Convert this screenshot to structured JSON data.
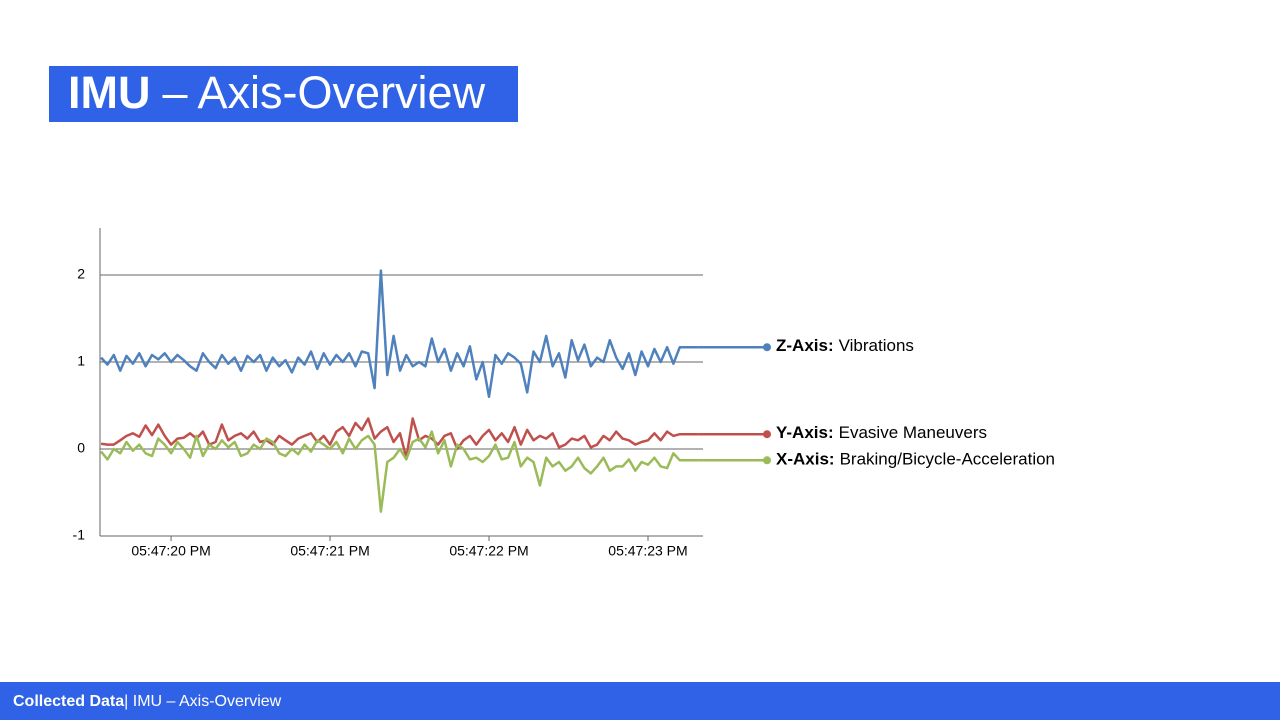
{
  "slide_title": {
    "bold": "IMU",
    "rest": "– Axis-Overview"
  },
  "footer": {
    "bold": "Collected Data",
    "rest": "| IMU – Axis-Overview"
  },
  "chart_data": {
    "type": "line",
    "x": [
      19.56,
      19.6,
      19.64,
      19.68,
      19.72,
      19.76,
      19.8,
      19.84,
      19.88,
      19.92,
      19.96,
      20,
      20.04,
      20.08,
      20.12,
      20.16,
      20.2,
      20.24,
      20.28,
      20.32,
      20.36,
      20.4,
      20.44,
      20.48,
      20.52,
      20.56,
      20.6,
      20.64,
      20.68,
      20.72,
      20.76,
      20.8,
      20.84,
      20.88,
      20.92,
      20.96,
      21,
      21.04,
      21.08,
      21.12,
      21.16,
      21.2,
      21.24,
      21.28,
      21.32,
      21.36,
      21.4,
      21.44,
      21.48,
      21.52,
      21.56,
      21.6,
      21.64,
      21.68,
      21.72,
      21.76,
      21.8,
      21.84,
      21.88,
      21.92,
      21.96,
      22,
      22.04,
      22.08,
      22.12,
      22.16,
      22.2,
      22.24,
      22.28,
      22.32,
      22.36,
      22.4,
      22.44,
      22.48,
      22.52,
      22.56,
      22.6,
      22.64,
      22.68,
      22.72,
      22.76,
      22.8,
      22.84,
      22.88,
      22.92,
      22.96,
      23,
      23.04,
      23.08,
      23.12,
      23.16,
      23.2,
      23.24,
      23.28,
      23.32
    ],
    "series": [
      {
        "name": "Z-Axis:",
        "detail": "Vibrations",
        "color": "#4f81bd",
        "values": [
          1.05,
          0.97,
          1.08,
          0.9,
          1.07,
          0.98,
          1.1,
          0.95,
          1.08,
          1.03,
          1.1,
          1.0,
          1.08,
          1.02,
          0.95,
          0.9,
          1.1,
          1.0,
          0.93,
          1.08,
          0.98,
          1.05,
          0.9,
          1.07,
          1.0,
          1.08,
          0.9,
          1.05,
          0.95,
          1.02,
          0.88,
          1.05,
          0.97,
          1.12,
          0.92,
          1.1,
          0.97,
          1.08,
          1.0,
          1.1,
          0.95,
          1.12,
          1.1,
          0.7,
          2.05,
          0.85,
          1.3,
          0.9,
          1.08,
          0.95,
          1.0,
          0.95,
          1.27,
          1.0,
          1.15,
          0.9,
          1.1,
          0.95,
          1.18,
          0.8,
          1.0,
          0.6,
          1.08,
          0.98,
          1.1,
          1.05,
          0.98,
          0.65,
          1.12,
          1.0,
          1.3,
          0.95,
          1.1,
          0.82,
          1.25,
          1.02,
          1.2,
          0.95,
          1.05,
          1.0,
          1.25,
          1.05,
          0.92,
          1.1,
          0.85,
          1.12,
          0.95,
          1.15,
          1.0,
          1.17,
          0.98,
          1.17,
          1.17,
          1.17,
          1.17
        ]
      },
      {
        "name": "Y-Axis:",
        "detail": "Evasive Maneuvers",
        "color": "#c0504d",
        "values": [
          0.06,
          0.05,
          0.05,
          0.1,
          0.15,
          0.18,
          0.14,
          0.27,
          0.16,
          0.28,
          0.15,
          0.05,
          0.12,
          0.13,
          0.18,
          0.12,
          0.2,
          0.05,
          0.08,
          0.28,
          0.1,
          0.15,
          0.18,
          0.12,
          0.2,
          0.08,
          0.1,
          0.05,
          0.15,
          0.1,
          0.05,
          0.12,
          0.15,
          0.18,
          0.08,
          0.15,
          0.05,
          0.2,
          0.25,
          0.15,
          0.3,
          0.22,
          0.35,
          0.12,
          0.2,
          0.25,
          0.08,
          0.18,
          -0.1,
          0.35,
          0.1,
          0.15,
          0.12,
          0.05,
          0.15,
          0.18,
          0.0,
          0.1,
          0.15,
          0.05,
          0.15,
          0.22,
          0.1,
          0.18,
          0.08,
          0.25,
          0.05,
          0.22,
          0.1,
          0.15,
          0.12,
          0.18,
          0.02,
          0.05,
          0.12,
          0.1,
          0.15,
          0.02,
          0.05,
          0.15,
          0.1,
          0.2,
          0.12,
          0.1,
          0.05,
          0.08,
          0.1,
          0.18,
          0.1,
          0.2,
          0.15,
          0.17,
          0.17,
          0.17,
          0.17
        ]
      },
      {
        "name": "X-Axis:",
        "detail": "Braking/Bicycle-Acceleration",
        "color": "#9bbb59",
        "values": [
          -0.03,
          -0.12,
          0.0,
          -0.05,
          0.08,
          -0.02,
          0.05,
          -0.05,
          -0.08,
          0.12,
          0.05,
          -0.05,
          0.08,
          0.0,
          -0.1,
          0.15,
          -0.08,
          0.05,
          0.0,
          0.1,
          0.02,
          0.08,
          -0.08,
          -0.05,
          0.05,
          0.0,
          0.12,
          0.08,
          -0.05,
          -0.08,
          0.0,
          -0.06,
          0.05,
          -0.03,
          0.1,
          0.05,
          0.0,
          0.08,
          -0.05,
          0.12,
          0.0,
          0.1,
          0.15,
          0.05,
          -0.72,
          -0.15,
          -0.1,
          0.0,
          -0.12,
          0.08,
          0.12,
          0.02,
          0.2,
          -0.05,
          0.1,
          -0.2,
          0.05,
          0.0,
          -0.12,
          -0.1,
          -0.15,
          -0.08,
          0.05,
          -0.12,
          -0.1,
          0.08,
          -0.2,
          -0.1,
          -0.15,
          -0.42,
          -0.1,
          -0.2,
          -0.15,
          -0.25,
          -0.2,
          -0.1,
          -0.22,
          -0.28,
          -0.2,
          -0.1,
          -0.25,
          -0.2,
          -0.2,
          -0.12,
          -0.25,
          -0.15,
          -0.18,
          -0.1,
          -0.2,
          -0.22,
          -0.05,
          -0.13,
          -0.13,
          -0.13,
          -0.13
        ]
      }
    ],
    "xlim": [
      19.553,
      23.346
    ],
    "xticks": [
      {
        "value": 20,
        "label": "05:47:20 PM"
      },
      {
        "value": 21,
        "label": "05:47:21 PM"
      },
      {
        "value": 22,
        "label": "05:47:22 PM"
      },
      {
        "value": 23,
        "label": "05:47:23 PM"
      }
    ],
    "ylim": [
      -1,
      2.54
    ],
    "yticks": [
      -1,
      0,
      1,
      2
    ],
    "grid": true
  }
}
